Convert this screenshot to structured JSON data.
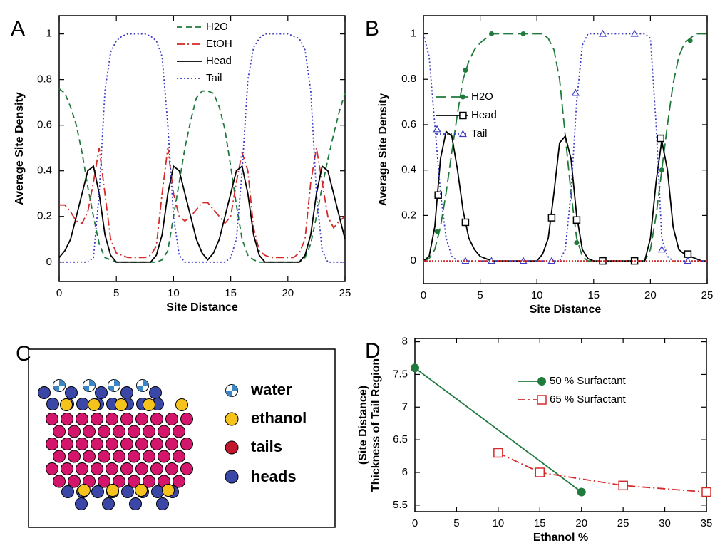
{
  "chart_data": [
    {
      "type": "line",
      "panel": "A",
      "x_label": "Site Distance",
      "y_label": "Average Site Density",
      "xlim": [
        0,
        25
      ],
      "ylim": [
        -0.085,
        1.08
      ],
      "xticks": [
        0,
        5,
        10,
        15,
        20,
        25
      ],
      "yticks": [
        0,
        0.2,
        0.4,
        0.6,
        0.8,
        1
      ],
      "x": [
        0,
        0.5,
        1,
        1.5,
        2,
        2.5,
        3,
        3.5,
        4,
        4.5,
        5,
        5.5,
        6,
        6.5,
        7,
        7.5,
        8,
        8.5,
        9,
        9.5,
        10,
        10.5,
        11,
        11.5,
        12,
        12.5,
        13,
        13.5,
        14,
        14.5,
        15,
        15.5,
        16,
        16.5,
        17,
        17.5,
        18,
        18.5,
        19,
        19.5,
        20,
        20.5,
        21,
        21.5,
        22,
        22.5,
        23,
        23.5,
        24,
        24.5,
        25
      ],
      "series": [
        {
          "name": "H2O",
          "color": "#1f7a3c",
          "dash": "8,5",
          "values": [
            0.76,
            0.74,
            0.68,
            0.6,
            0.48,
            0.33,
            0.2,
            0.08,
            0.02,
            0.01,
            0,
            0,
            0,
            0,
            0,
            0,
            0,
            0,
            0.01,
            0.05,
            0.2,
            0.35,
            0.5,
            0.62,
            0.72,
            0.75,
            0.75,
            0.74,
            0.68,
            0.58,
            0.42,
            0.25,
            0.1,
            0.03,
            0.01,
            0,
            0,
            0,
            0,
            0,
            0,
            0,
            0,
            0.02,
            0.08,
            0.2,
            0.33,
            0.45,
            0.56,
            0.66,
            0.74
          ]
        },
        {
          "name": "EtOH",
          "color": "#d42a2a",
          "dash": "11,4,2,4",
          "values": [
            0.25,
            0.25,
            0.22,
            0.18,
            0.17,
            0.22,
            0.35,
            0.5,
            0.3,
            0.1,
            0.04,
            0.03,
            0.02,
            0.02,
            0.02,
            0.02,
            0.03,
            0.07,
            0.3,
            0.5,
            0.3,
            0.2,
            0.18,
            0.2,
            0.23,
            0.26,
            0.26,
            0.23,
            0.2,
            0.17,
            0.2,
            0.35,
            0.48,
            0.4,
            0.15,
            0.05,
            0.03,
            0.02,
            0.02,
            0.02,
            0.02,
            0.02,
            0.04,
            0.1,
            0.35,
            0.5,
            0.35,
            0.2,
            0.15,
            0.18,
            0.2
          ]
        },
        {
          "name": "Head",
          "color": "#000000",
          "dash": "none",
          "values": [
            0.02,
            0.05,
            0.1,
            0.2,
            0.3,
            0.4,
            0.42,
            0.3,
            0.12,
            0.03,
            0,
            0,
            0,
            0,
            0,
            0,
            0,
            0.03,
            0.12,
            0.3,
            0.42,
            0.4,
            0.3,
            0.2,
            0.1,
            0.04,
            0.01,
            0.04,
            0.1,
            0.2,
            0.3,
            0.4,
            0.42,
            0.3,
            0.12,
            0.03,
            0,
            0,
            0,
            0,
            0,
            0,
            0,
            0.03,
            0.12,
            0.3,
            0.42,
            0.4,
            0.3,
            0.2,
            0.1
          ]
        },
        {
          "name": "Tail",
          "color": "#3b3bc4",
          "dash": "2,3",
          "values": [
            0,
            0,
            0,
            0,
            0,
            0,
            0.02,
            0.3,
            0.75,
            0.92,
            0.97,
            0.99,
            1,
            1,
            1,
            1,
            0.99,
            0.97,
            0.9,
            0.6,
            0.2,
            0.03,
            0,
            0,
            0,
            0,
            0,
            0,
            0,
            0,
            0.02,
            0.1,
            0.4,
            0.8,
            0.94,
            0.98,
            1,
            1,
            1,
            1,
            1,
            0.99,
            0.98,
            0.93,
            0.75,
            0.3,
            0.05,
            0,
            0,
            0,
            0
          ]
        }
      ]
    },
    {
      "type": "line",
      "panel": "B",
      "x_label": "Site Distance",
      "y_label": "Average Site Density",
      "xlim": [
        0,
        25
      ],
      "ylim": [
        -0.1,
        1.08
      ],
      "xticks": [
        0,
        5,
        10,
        15,
        20,
        25
      ],
      "yticks": [
        0,
        0.2,
        0.4,
        0.6,
        0.8,
        1
      ],
      "x": [
        0,
        0.5,
        1,
        1.5,
        2,
        2.5,
        3,
        3.5,
        4,
        4.5,
        5,
        5.5,
        6,
        6.5,
        7,
        7.5,
        8,
        8.5,
        9,
        9.5,
        10,
        10.5,
        11,
        11.5,
        12,
        12.5,
        13,
        13.5,
        14,
        14.5,
        15,
        15.5,
        16,
        16.5,
        17,
        17.5,
        18,
        18.5,
        19,
        19.5,
        20,
        20.5,
        21,
        21.5,
        22,
        22.5,
        23,
        23.5,
        24,
        24.5,
        25
      ],
      "series": [
        {
          "name": "H2O",
          "color": "#1f7a3c",
          "dash": "14,6",
          "marker": "circle",
          "values": [
            0,
            0.01,
            0.05,
            0.15,
            0.3,
            0.48,
            0.65,
            0.8,
            0.88,
            0.93,
            0.96,
            0.98,
            1,
            1,
            1,
            1,
            1,
            1,
            1,
            1,
            1,
            1,
            0.98,
            0.93,
            0.8,
            0.55,
            0.3,
            0.1,
            0.02,
            0,
            0,
            0,
            0,
            0,
            0,
            0,
            0,
            0,
            0,
            0,
            0.05,
            0.2,
            0.4,
            0.6,
            0.78,
            0.9,
            0.96,
            0.98,
            1,
            1,
            1
          ],
          "marker_x": [
            1.2,
            3.7,
            6,
            8.8,
            13.5,
            21,
            23.5
          ],
          "marker_values": [
            0.13,
            0.84,
            1,
            1,
            0.08,
            0.4,
            0.97
          ]
        },
        {
          "name": "Head",
          "color": "#000000",
          "dash": "none",
          "marker": "square",
          "values": [
            0,
            0.02,
            0.15,
            0.45,
            0.57,
            0.55,
            0.4,
            0.22,
            0.1,
            0.05,
            0.02,
            0.01,
            0,
            0,
            0,
            0,
            0,
            0,
            0,
            0,
            0,
            0.03,
            0.1,
            0.3,
            0.52,
            0.55,
            0.45,
            0.2,
            0.05,
            0.01,
            0,
            0,
            0,
            0,
            0,
            0,
            0,
            0,
            0,
            0,
            0.1,
            0.35,
            0.53,
            0.4,
            0.15,
            0.05,
            0.03,
            0.02,
            0.01,
            0,
            0
          ],
          "marker_x": [
            1.3,
            3.7,
            11.3,
            13.5,
            15.8,
            18.6,
            20.9,
            23.3
          ],
          "marker_values": [
            0.29,
            0.17,
            0.19,
            0.18,
            0,
            0,
            0.54,
            0.03
          ]
        },
        {
          "name": "Tail",
          "color": "#3b3bc4",
          "dash": "2,3",
          "marker": "triangle",
          "values": [
            1,
            0.9,
            0.6,
            0.3,
            0.1,
            0.02,
            0,
            0,
            0,
            0,
            0,
            0,
            0,
            0,
            0,
            0,
            0,
            0,
            0,
            0,
            0,
            0,
            0,
            0,
            0,
            0.05,
            0.3,
            0.7,
            0.95,
            1,
            1,
            1,
            1,
            1,
            1,
            1,
            1,
            1,
            1,
            1,
            0.98,
            0.6,
            0.1,
            0.02,
            0,
            0,
            0,
            0,
            0,
            0,
            0
          ],
          "marker_x": [
            1.2,
            3.7,
            6,
            8.8,
            11.3,
            13.4,
            15.8,
            18.6,
            21,
            23.3
          ],
          "marker_values": [
            0.58,
            0,
            0,
            0,
            0,
            0.74,
            1,
            1,
            0.05,
            0
          ]
        },
        {
          "color": "#d42a2a",
          "dash": "2,2",
          "x": [
            0,
            25
          ],
          "values": [
            0,
            0
          ]
        }
      ]
    },
    {
      "type": "line",
      "panel": "D",
      "x_label": "Ethanol %",
      "y_label": [
        "(Site Distance)",
        "Thickness of Tail Region"
      ],
      "xlim": [
        0,
        35
      ],
      "ylim": [
        5.4,
        8.05
      ],
      "xticks": [
        0,
        5,
        10,
        15,
        20,
        25,
        30,
        35
      ],
      "yticks": [
        5.5,
        6,
        6.5,
        7,
        7.5,
        8
      ],
      "series": [
        {
          "name": "50 % Surfactant",
          "color": "#1f7a3c",
          "dash": "none",
          "marker": "bigcircle",
          "x": [
            0,
            20
          ],
          "values": [
            7.6,
            5.7
          ]
        },
        {
          "name": "65 % Surfactant",
          "color": "#d42a2a",
          "dash": "11,4,2,4",
          "marker": "bigsquare",
          "x": [
            10,
            15,
            25,
            35
          ],
          "values": [
            6.3,
            6.0,
            5.8,
            5.7
          ]
        }
      ]
    }
  ],
  "diagram": {
    "panel": "C",
    "legend": [
      "water",
      "ethanol",
      "tails",
      "heads"
    ]
  }
}
